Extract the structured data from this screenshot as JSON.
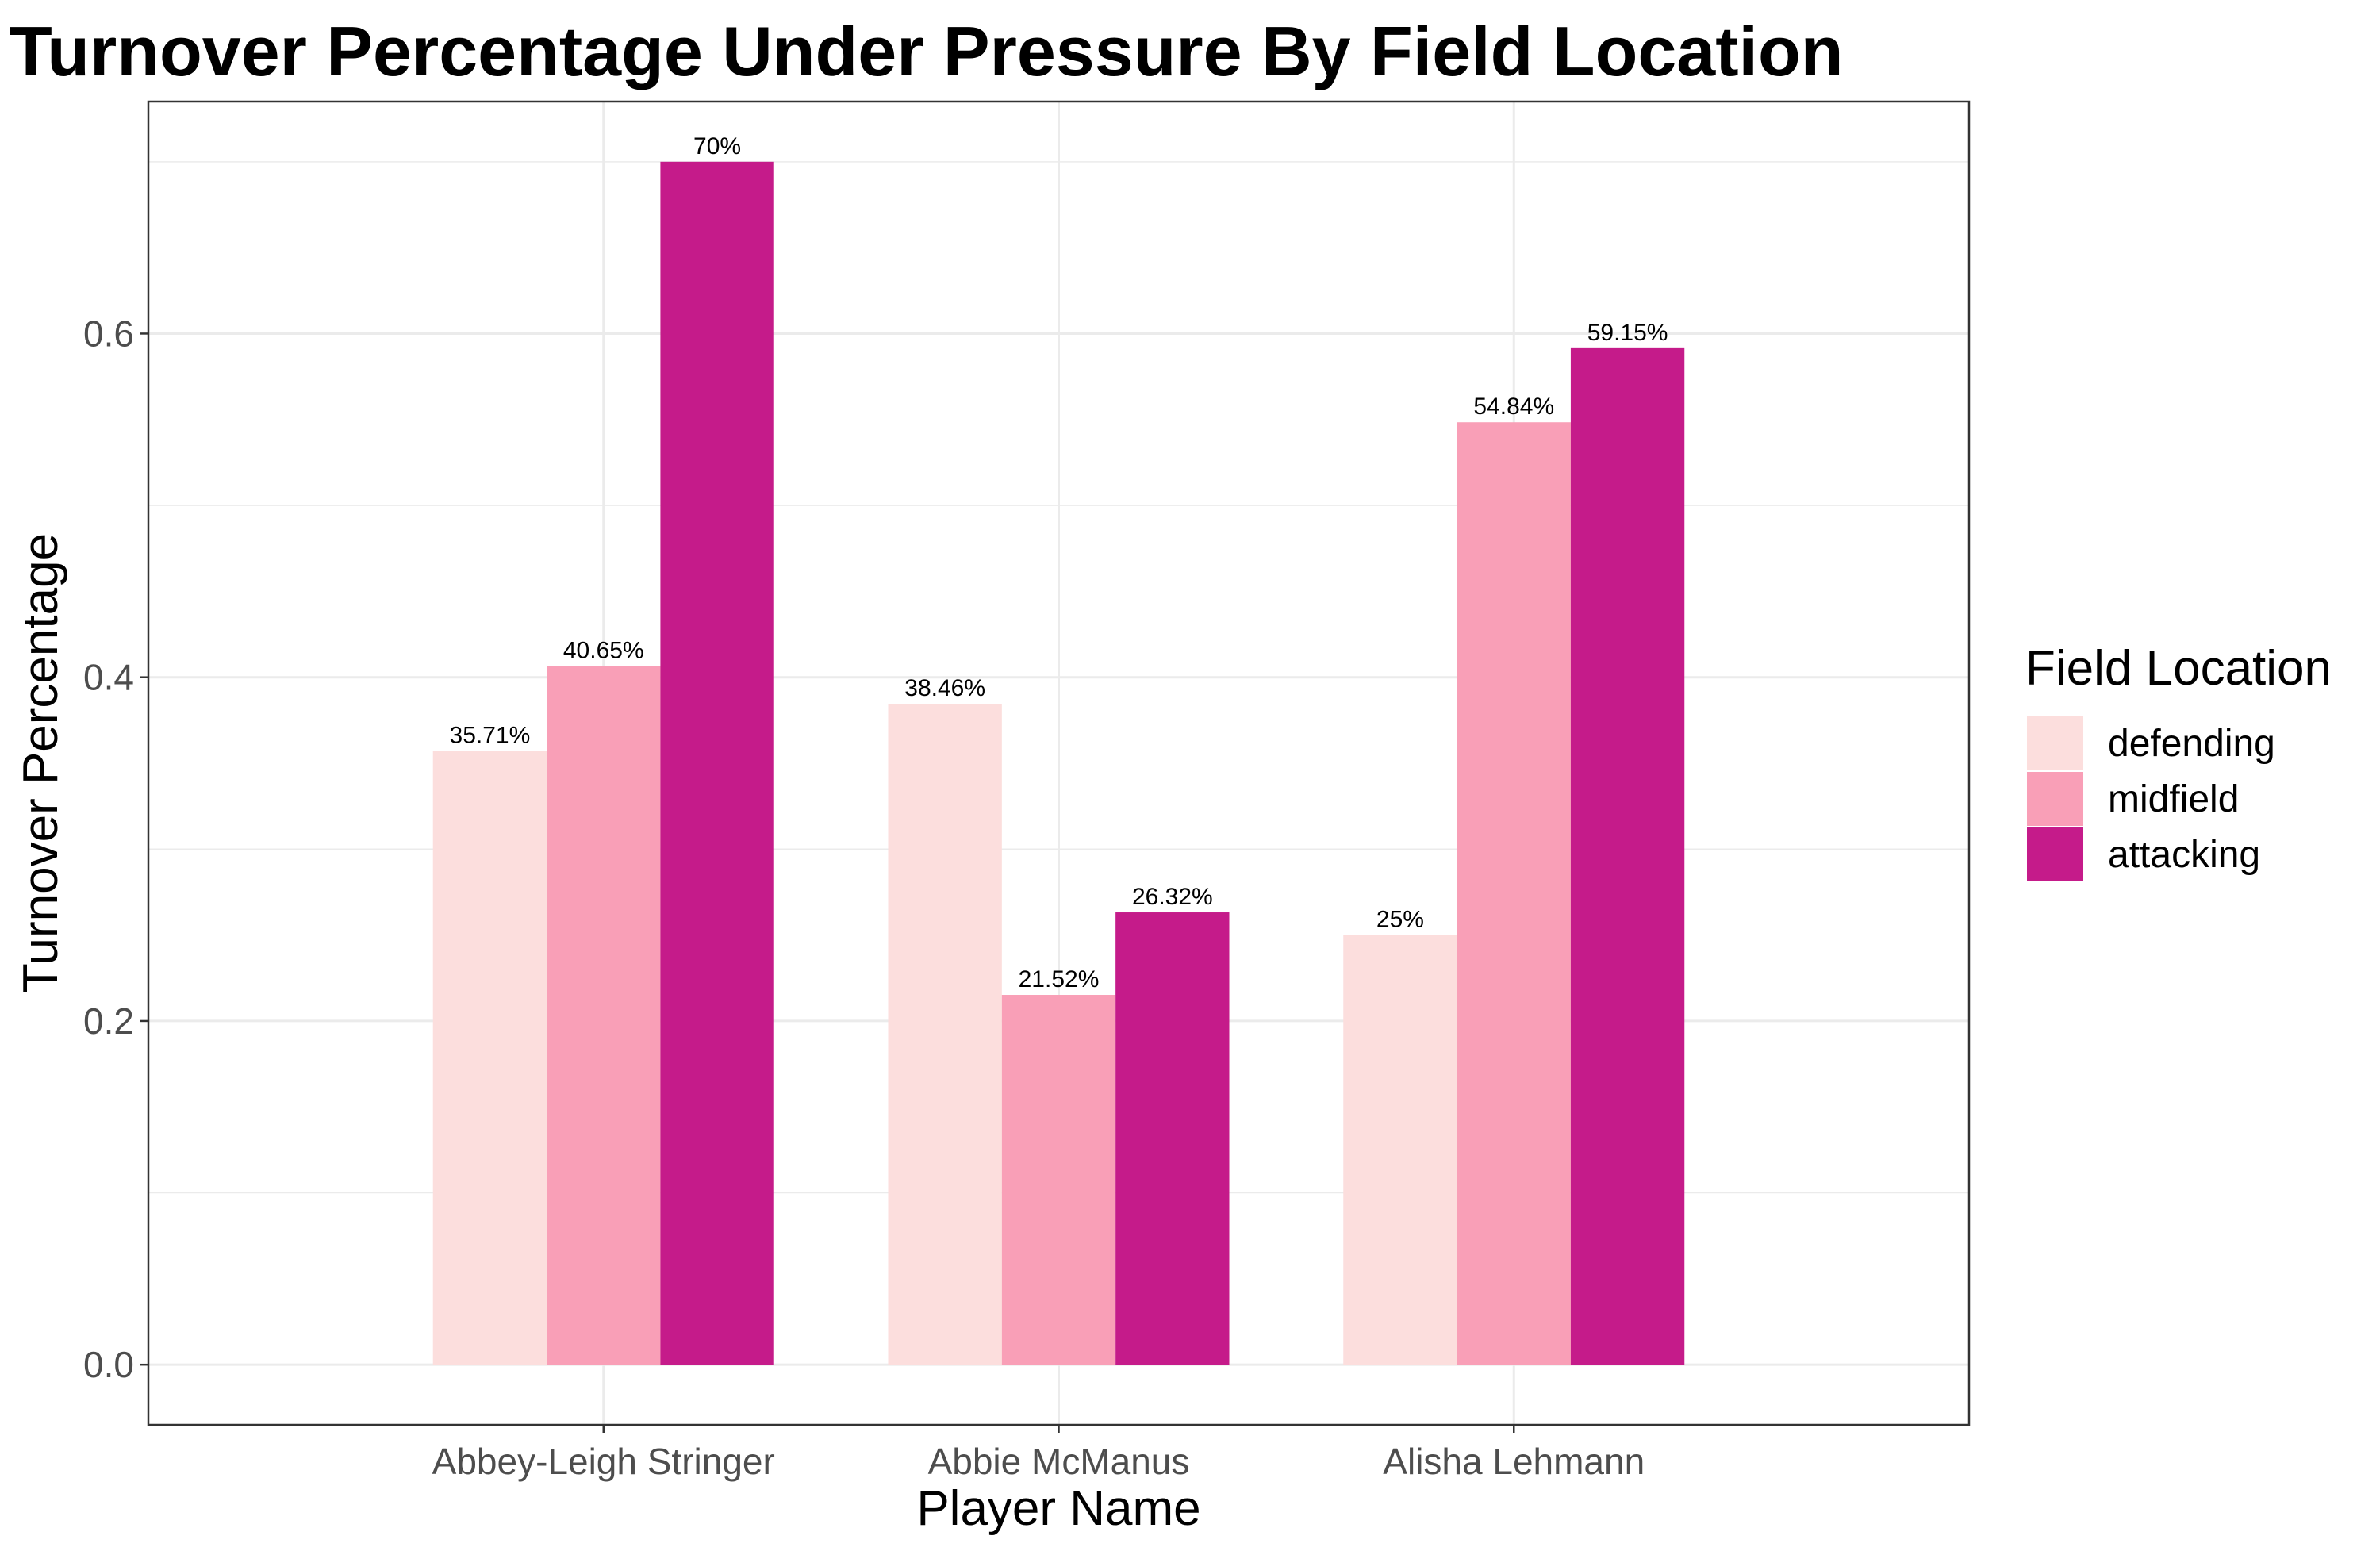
{
  "chart_data": {
    "type": "bar",
    "title": "Turnover Percentage Under Pressure By Field Location",
    "xlabel": "Player Name",
    "ylabel": "Turnover Percentage",
    "categories": [
      "Abbey-Leigh Stringer",
      "Abbie McManus",
      "Alisha Lehmann"
    ],
    "series": [
      {
        "name": "defending",
        "color": "#fcdedd",
        "values": [
          0.3571,
          0.3846,
          0.25
        ],
        "labels": [
          "35.71%",
          "38.46%",
          "25%"
        ]
      },
      {
        "name": "midfield",
        "color": "#f99fb7",
        "values": [
          0.4065,
          0.2152,
          0.5484
        ],
        "labels": [
          "40.65%",
          "21.52%",
          "54.84%"
        ]
      },
      {
        "name": "attacking",
        "color": "#c51b8a",
        "values": [
          0.7,
          0.2632,
          0.5915
        ],
        "labels": [
          "70%",
          "26.32%",
          "59.15%"
        ]
      }
    ],
    "yticks": [
      0.0,
      0.2,
      0.4,
      0.6
    ],
    "ytick_labels": [
      "0.0",
      "0.2",
      "0.4",
      "0.6"
    ],
    "ylim": [
      -0.035,
      0.735
    ],
    "grid": true,
    "legend": {
      "title": "Field Location",
      "position": "right"
    }
  }
}
